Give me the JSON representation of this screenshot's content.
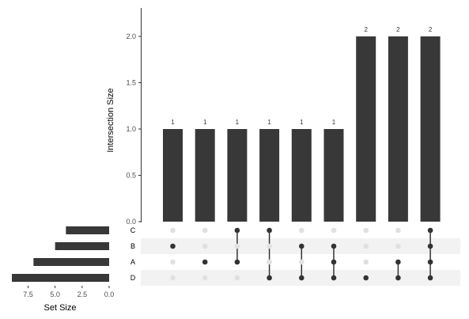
{
  "chart_data": [
    {
      "type": "bar",
      "ylabel": "Intersection Size",
      "ylim": [
        0,
        2.3
      ],
      "yticks": [
        "0.0",
        "0.5",
        "1.0",
        "1.5",
        "2.0"
      ],
      "values": [
        1,
        1,
        1,
        1,
        1,
        1,
        2,
        2,
        2
      ],
      "value_labels": [
        "1",
        "1",
        "1",
        "1",
        "1",
        "1",
        "2",
        "2",
        "2"
      ],
      "bar_color": "#383838",
      "grid": false
    },
    {
      "type": "bar",
      "orientation": "horizontal",
      "xlabel": "Set Size",
      "xlim": [
        9.0,
        0.0
      ],
      "xticks": [
        "7.5",
        "5.0",
        "2.5",
        "0.0"
      ],
      "categories": [
        "C",
        "B",
        "A",
        "D"
      ],
      "values": [
        4,
        5,
        7,
        9
      ],
      "bar_color": "#383838"
    },
    {
      "type": "table",
      "sets": [
        "C",
        "B",
        "A",
        "D"
      ],
      "intersections": [
        [
          "B"
        ],
        [
          "A"
        ],
        [
          "C",
          "A"
        ],
        [
          "C",
          "D"
        ],
        [
          "B",
          "D"
        ],
        [
          "B",
          "A",
          "D"
        ],
        [
          "D"
        ],
        [
          "A",
          "D"
        ],
        [
          "C",
          "B",
          "A",
          "D"
        ]
      ],
      "active_dot_color": "#333333",
      "inactive_dot_color": "#e0e0e0",
      "stripe_color": "#f2f2f2"
    }
  ]
}
